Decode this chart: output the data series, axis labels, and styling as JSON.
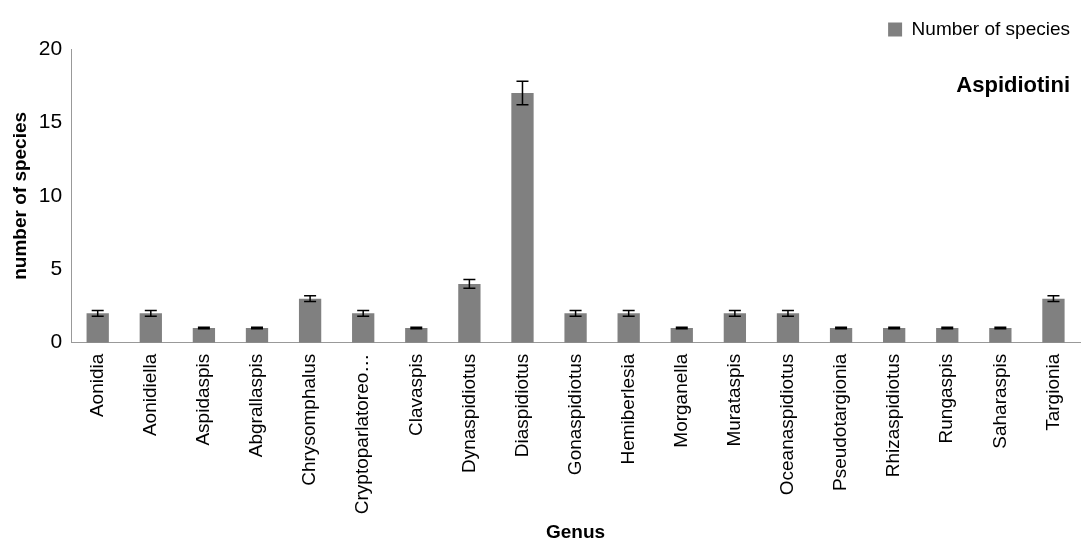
{
  "chart_data": {
    "type": "bar",
    "title": "Aspidiotini",
    "xlabel": "Genus",
    "ylabel": "number of species",
    "categories": [
      "Aonidia",
      "Aonidiella",
      "Aspidaspis",
      "Abgrallaspis",
      "Chrysomphalus",
      "Cryptoparlatoreo…",
      "Clavaspis",
      "Dynaspidiotus",
      "Diaspidiotus",
      "Gonaspidiotus",
      "Hemiberlesia",
      "Morganella",
      "Murataspis",
      "Oceanaspidiotus",
      "Pseudotargionia",
      "Rhizaspidiotus",
      "Rungaspis",
      "Saharaspis",
      "Targionia"
    ],
    "series": [
      {
        "name": "Number of species",
        "color": "#808080",
        "values": [
          2,
          2,
          1,
          1,
          3,
          2,
          1,
          4,
          17,
          2,
          2,
          1,
          2,
          2,
          1,
          1,
          1,
          1,
          3
        ],
        "errors": [
          0.2,
          0.2,
          0.05,
          0.05,
          0.2,
          0.2,
          0.05,
          0.3,
          0.8,
          0.2,
          0.2,
          0.05,
          0.2,
          0.2,
          0.05,
          0.05,
          0.05,
          0.05,
          0.2
        ]
      }
    ],
    "ylim": [
      0,
      20
    ],
    "yticks": [
      0,
      5,
      10,
      15,
      20
    ],
    "grid": false,
    "legend": "top right"
  }
}
